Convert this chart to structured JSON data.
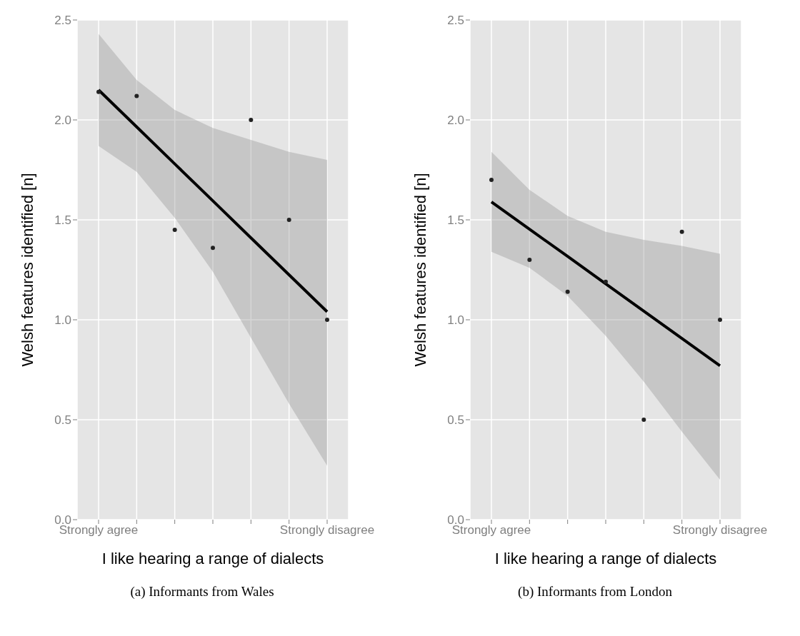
{
  "chart_data": [
    {
      "type": "scatter",
      "xlabel": "I like hearing a range of dialects",
      "ylabel": "Welsh features identified [n]",
      "annotations": [
        "(a) Informants from Wales"
      ],
      "categories": [
        "Strongly agree",
        null,
        null,
        null,
        null,
        null,
        "Strongly disagree"
      ],
      "ylim": [
        0,
        2.5
      ],
      "yticks": [
        {
          "value": 0,
          "label": "0.0"
        },
        {
          "value": 0.5,
          "label": "0.5"
        },
        {
          "value": 1,
          "label": "1.0"
        },
        {
          "value": 1.5,
          "label": "1.5"
        },
        {
          "value": 2,
          "label": "2.0"
        },
        {
          "value": 2.5,
          "label": "2.5"
        }
      ],
      "grid": true,
      "series": [
        {
          "color": "#222222",
          "values": [
            2.14,
            2.12,
            1.45,
            1.36,
            2.0,
            1.5,
            1.0
          ]
        },
        {
          "type": "line",
          "color": "#000000",
          "values": [
            2.15,
            1.965,
            1.78,
            1.595,
            1.41,
            1.225,
            1.04
          ],
          "lower": [
            1.87,
            1.74,
            1.51,
            1.24,
            0.91,
            0.58,
            0.27
          ],
          "upper": [
            2.43,
            2.2,
            2.05,
            1.96,
            1.9,
            1.84,
            1.8
          ]
        }
      ]
    },
    {
      "type": "scatter",
      "xlabel": "I like hearing a range of dialects",
      "ylabel": "Welsh features identified [n]",
      "annotations": [
        "(b) Informants from London"
      ],
      "categories": [
        "Strongly agree",
        null,
        null,
        null,
        null,
        null,
        "Strongly disagree"
      ],
      "ylim": [
        0,
        2.5
      ],
      "yticks": [
        {
          "value": 0,
          "label": "0.0"
        },
        {
          "value": 0.5,
          "label": "0.5"
        },
        {
          "value": 1,
          "label": "1.0"
        },
        {
          "value": 1.5,
          "label": "1.5"
        },
        {
          "value": 2,
          "label": "2.0"
        },
        {
          "value": 2.5,
          "label": "2.5"
        }
      ],
      "grid": true,
      "series": [
        {
          "color": "#222222",
          "values": [
            1.7,
            1.3,
            1.14,
            1.19,
            0.5,
            1.44,
            1.0
          ]
        },
        {
          "type": "line",
          "color": "#000000",
          "values": [
            1.59,
            1.453,
            1.317,
            1.18,
            1.043,
            0.907,
            0.77
          ],
          "lower": [
            1.34,
            1.26,
            1.12,
            0.92,
            0.69,
            0.44,
            0.2
          ],
          "upper": [
            1.84,
            1.65,
            1.52,
            1.44,
            1.4,
            1.37,
            1.33
          ]
        }
      ]
    }
  ]
}
